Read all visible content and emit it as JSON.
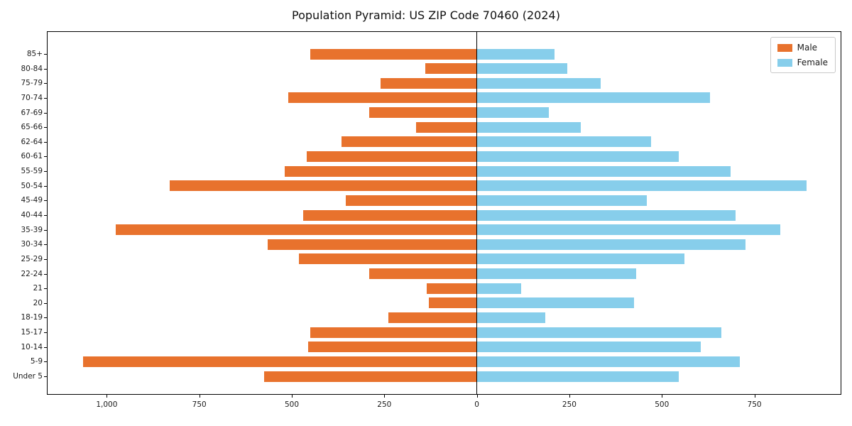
{
  "title": "Population Pyramid: US ZIP Code 70460 (2024)",
  "legend": {
    "male_label": "Male",
    "female_label": "Female"
  },
  "colors": {
    "male": "#e8722d",
    "female": "#87ceeb",
    "axis": "#000000"
  },
  "chart_data": {
    "type": "bar",
    "subtype": "population-pyramid",
    "orientation": "horizontal",
    "title": "Population Pyramid: US ZIP Code 70460 (2024)",
    "categories": [
      "85+",
      "80-84",
      "75-79",
      "70-74",
      "67-69",
      "65-66",
      "62-64",
      "60-61",
      "55-59",
      "50-54",
      "45-49",
      "40-44",
      "35-39",
      "30-34",
      "25-29",
      "22-24",
      "21",
      "20",
      "18-19",
      "15-17",
      "10-14",
      "5-9",
      "Under 5"
    ],
    "series": [
      {
        "name": "Male",
        "color": "#e8722d",
        "side": "left",
        "values": [
          450,
          140,
          260,
          510,
          290,
          165,
          365,
          460,
          520,
          830,
          355,
          470,
          975,
          565,
          480,
          290,
          135,
          130,
          240,
          450,
          455,
          1065,
          575
        ]
      },
      {
        "name": "Female",
        "color": "#87ceeb",
        "side": "right",
        "values": [
          210,
          245,
          335,
          630,
          195,
          280,
          470,
          545,
          685,
          890,
          460,
          700,
          820,
          725,
          560,
          430,
          120,
          425,
          185,
          660,
          605,
          710,
          545
        ]
      }
    ],
    "x_ticks": [
      -1000,
      -750,
      -500,
      -250,
      0,
      250,
      500,
      750
    ],
    "x_tick_labels": [
      "1,000",
      "750",
      "500",
      "250",
      "0",
      "250",
      "500",
      "750"
    ],
    "xlim": [
      -1160,
      983
    ],
    "grid": false,
    "legend_position": "upper right"
  }
}
